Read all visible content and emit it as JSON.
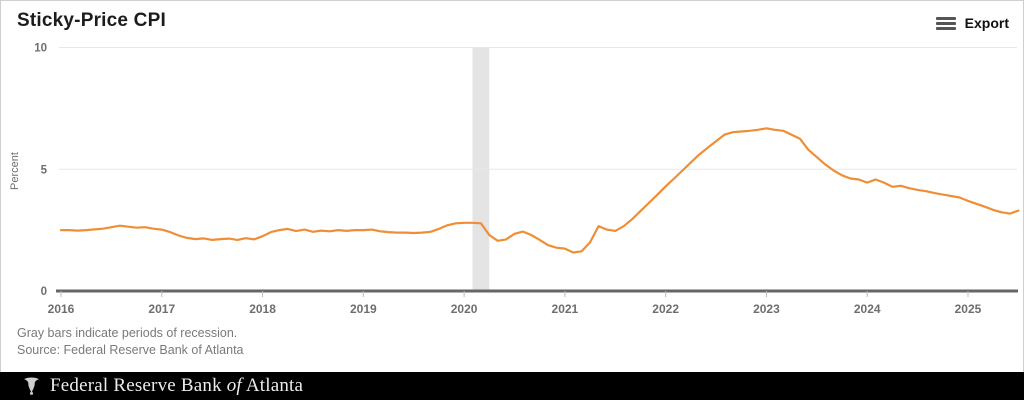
{
  "header": {
    "title": "Sticky-Price CPI",
    "export_label": "Export"
  },
  "chart_data": {
    "type": "line",
    "title": "Sticky-Price CPI",
    "xlabel": "",
    "ylabel": "Percent",
    "ylim": [
      0,
      10
    ],
    "yticks": [
      0,
      5,
      10
    ],
    "xticks": [
      "2016",
      "2017",
      "2018",
      "2019",
      "2020",
      "2021",
      "2022",
      "2023",
      "2024",
      "2025"
    ],
    "x_start": "2016-01",
    "x_end": "2025-07",
    "frequency": "monthly",
    "grid": "horizontal-only",
    "legend": "none",
    "recession_bands": [
      {
        "start": "2020-02",
        "end": "2020-04"
      }
    ],
    "series": [
      {
        "name": "Sticky-Price CPI",
        "color": "#ef8e35",
        "values": [
          2.5,
          2.5,
          2.48,
          2.5,
          2.53,
          2.56,
          2.62,
          2.68,
          2.64,
          2.6,
          2.62,
          2.56,
          2.52,
          2.42,
          2.28,
          2.18,
          2.13,
          2.16,
          2.1,
          2.13,
          2.15,
          2.1,
          2.17,
          2.12,
          2.25,
          2.42,
          2.5,
          2.55,
          2.46,
          2.52,
          2.43,
          2.48,
          2.45,
          2.5,
          2.47,
          2.5,
          2.5,
          2.52,
          2.45,
          2.42,
          2.4,
          2.4,
          2.38,
          2.4,
          2.43,
          2.55,
          2.7,
          2.78,
          2.8,
          2.8,
          2.78,
          2.3,
          2.06,
          2.12,
          2.35,
          2.44,
          2.3,
          2.1,
          1.88,
          1.78,
          1.74,
          1.58,
          1.63,
          2.0,
          2.66,
          2.52,
          2.47,
          2.66,
          2.95,
          3.28,
          3.62,
          3.95,
          4.3,
          4.62,
          4.95,
          5.28,
          5.6,
          5.88,
          6.15,
          6.42,
          6.52,
          6.55,
          6.58,
          6.62,
          6.68,
          6.62,
          6.58,
          6.42,
          6.25,
          5.8,
          5.5,
          5.2,
          4.95,
          4.75,
          4.62,
          4.58,
          4.45,
          4.58,
          4.45,
          4.28,
          4.32,
          4.22,
          4.15,
          4.1,
          4.02,
          3.96,
          3.9,
          3.84,
          3.7,
          3.58,
          3.46,
          3.33,
          3.23,
          3.18,
          3.3
        ]
      }
    ]
  },
  "notes": {
    "line1": "Gray bars indicate periods of recession.",
    "line2": "Source: Federal Reserve Bank of Atlanta"
  },
  "footer": {
    "bank_prefix": "Federal Reserve Bank ",
    "bank_of": "of",
    "bank_suffix": " Atlanta"
  },
  "colors": {
    "line": "#ef8e35",
    "recession_band": "#e4e4e4",
    "gridline": "#e8e8e8",
    "axis": "#666666",
    "tick": "#bbbbbb",
    "axis_label": "#6e6e6e",
    "notes_text": "#7a7a7a",
    "footer_bg": "#000000",
    "footer_text": "#ececec"
  }
}
